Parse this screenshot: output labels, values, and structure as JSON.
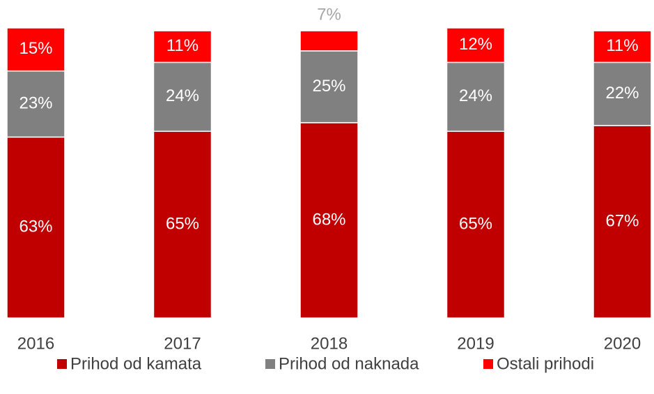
{
  "chart_data": {
    "type": "stacked_bar",
    "categories": [
      "2016",
      "2017",
      "2018",
      "2019",
      "2020"
    ],
    "series": [
      {
        "name": "Prihod od kamata",
        "color": "#c00000",
        "values": [
          63,
          65,
          68,
          65,
          67
        ],
        "value_labels": [
          "63%",
          "65%",
          "68%",
          "65%",
          "67%"
        ]
      },
      {
        "name": "Prihod od naknada",
        "color": "#808080",
        "values": [
          23,
          24,
          25,
          24,
          22
        ],
        "value_labels": [
          "23%",
          "24%",
          "25%",
          "24%",
          "22%"
        ]
      },
      {
        "name": "Ostali prihodi",
        "color": "#ff0000",
        "values": [
          15,
          11,
          7,
          12,
          11
        ],
        "value_labels": [
          "15%",
          "11%",
          "7%",
          "12%",
          "11%"
        ]
      }
    ],
    "legend": "bottom"
  }
}
